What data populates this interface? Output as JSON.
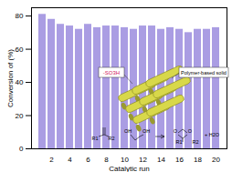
{
  "chart_data": {
    "type": "bar",
    "x_label": "Catalytic run",
    "y_label": "Conversion of (%)",
    "categories": [
      null,
      2,
      null,
      4,
      null,
      6,
      null,
      8,
      null,
      10,
      null,
      12,
      null,
      14,
      null,
      16,
      null,
      18,
      null,
      20
    ],
    "values": [
      81,
      78,
      75,
      74,
      72,
      75,
      73,
      74,
      74,
      73,
      72,
      74,
      74,
      72,
      73,
      72,
      70,
      72,
      72,
      73
    ],
    "color": "#aa9de3",
    "ylim": [
      0,
      85
    ],
    "yticks": [
      0,
      20,
      40,
      60,
      80
    ],
    "annotations": [
      "Polymer-based solid",
      "-SO3H",
      "R1",
      "R2",
      "OH",
      "OH",
      "O",
      "O",
      "R1",
      "R2",
      "+ H2O"
    ]
  }
}
